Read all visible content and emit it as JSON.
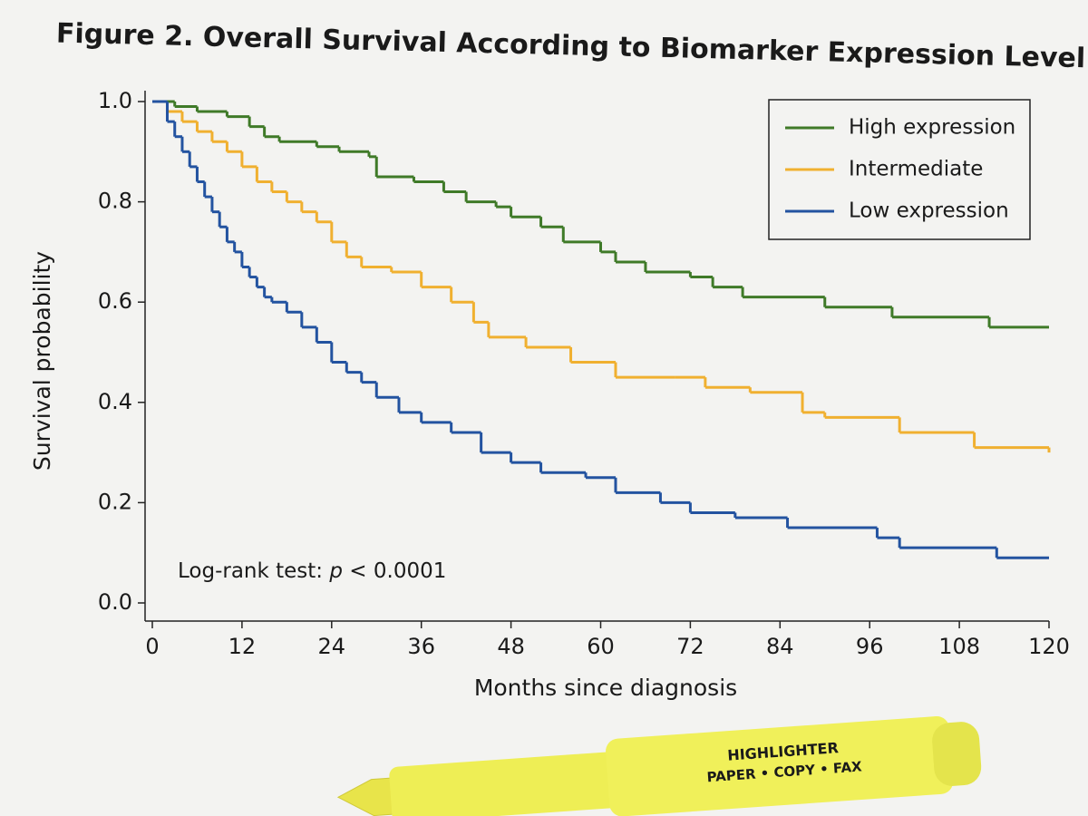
{
  "chart_data": {
    "type": "step",
    "title": "Figure 2. Overall Survival According to Biomarker Expression Level",
    "x_label": "Months since diagnosis",
    "y_label": "Survival probability",
    "annotation": {
      "prefix": "Log-rank test: ",
      "italic": "p",
      "suffix": " < 0.0001"
    },
    "xlim": [
      0,
      120
    ],
    "xticks": [
      0,
      12,
      24,
      36,
      48,
      60,
      72,
      84,
      96,
      108,
      120
    ],
    "ylim": [
      0,
      1
    ],
    "yticks": [
      {
        "value": 0,
        "label": "0.0"
      },
      0.2,
      0.4,
      0.6,
      0.8,
      {
        "value": 1,
        "label": "1.0"
      }
    ],
    "legend": "top-right",
    "series": [
      {
        "name": "High expression",
        "color": "#3f7a28",
        "x": [
          0,
          3,
          6,
          10,
          13,
          15,
          17,
          22,
          25,
          29,
          30,
          35,
          39,
          42,
          46,
          48,
          52,
          55,
          60,
          62,
          66,
          72,
          75,
          79,
          90,
          99,
          112,
          120
        ],
        "values": [
          1.0,
          0.99,
          0.98,
          0.97,
          0.95,
          0.93,
          0.92,
          0.91,
          0.9,
          0.89,
          0.85,
          0.84,
          0.82,
          0.8,
          0.79,
          0.77,
          0.75,
          0.72,
          0.7,
          0.68,
          0.66,
          0.65,
          0.63,
          0.61,
          0.59,
          0.57,
          0.55,
          0.55
        ]
      },
      {
        "name": "Intermediate",
        "color": "#f0b030",
        "x": [
          0,
          2,
          4,
          6,
          8,
          10,
          12,
          14,
          16,
          18,
          20,
          22,
          24,
          26,
          28,
          32,
          36,
          40,
          43,
          45,
          50,
          56,
          62,
          70,
          74,
          80,
          87,
          90,
          100,
          110,
          120
        ],
        "values": [
          1.0,
          0.98,
          0.96,
          0.94,
          0.92,
          0.9,
          0.87,
          0.84,
          0.82,
          0.8,
          0.78,
          0.76,
          0.72,
          0.69,
          0.67,
          0.66,
          0.63,
          0.6,
          0.56,
          0.53,
          0.51,
          0.48,
          0.45,
          0.45,
          0.43,
          0.42,
          0.38,
          0.37,
          0.34,
          0.31,
          0.3
        ]
      },
      {
        "name": "Low expression",
        "color": "#2353a0",
        "x": [
          0,
          2,
          3,
          4,
          5,
          6,
          7,
          8,
          9,
          10,
          11,
          12,
          13,
          14,
          15,
          16,
          18,
          20,
          22,
          24,
          26,
          28,
          30,
          33,
          36,
          40,
          44,
          48,
          52,
          58,
          62,
          68,
          72,
          78,
          85,
          97,
          100,
          113,
          120
        ],
        "values": [
          1.0,
          0.96,
          0.93,
          0.9,
          0.87,
          0.84,
          0.81,
          0.78,
          0.75,
          0.72,
          0.7,
          0.67,
          0.65,
          0.63,
          0.61,
          0.6,
          0.58,
          0.55,
          0.52,
          0.48,
          0.46,
          0.44,
          0.41,
          0.38,
          0.36,
          0.34,
          0.3,
          0.28,
          0.26,
          0.25,
          0.22,
          0.2,
          0.18,
          0.17,
          0.15,
          0.13,
          0.11,
          0.09,
          0.09
        ]
      }
    ]
  },
  "highlighter": {
    "brand": "HIGHLIGHTER",
    "subtitle": "PAPER • COPY • FAX"
  }
}
